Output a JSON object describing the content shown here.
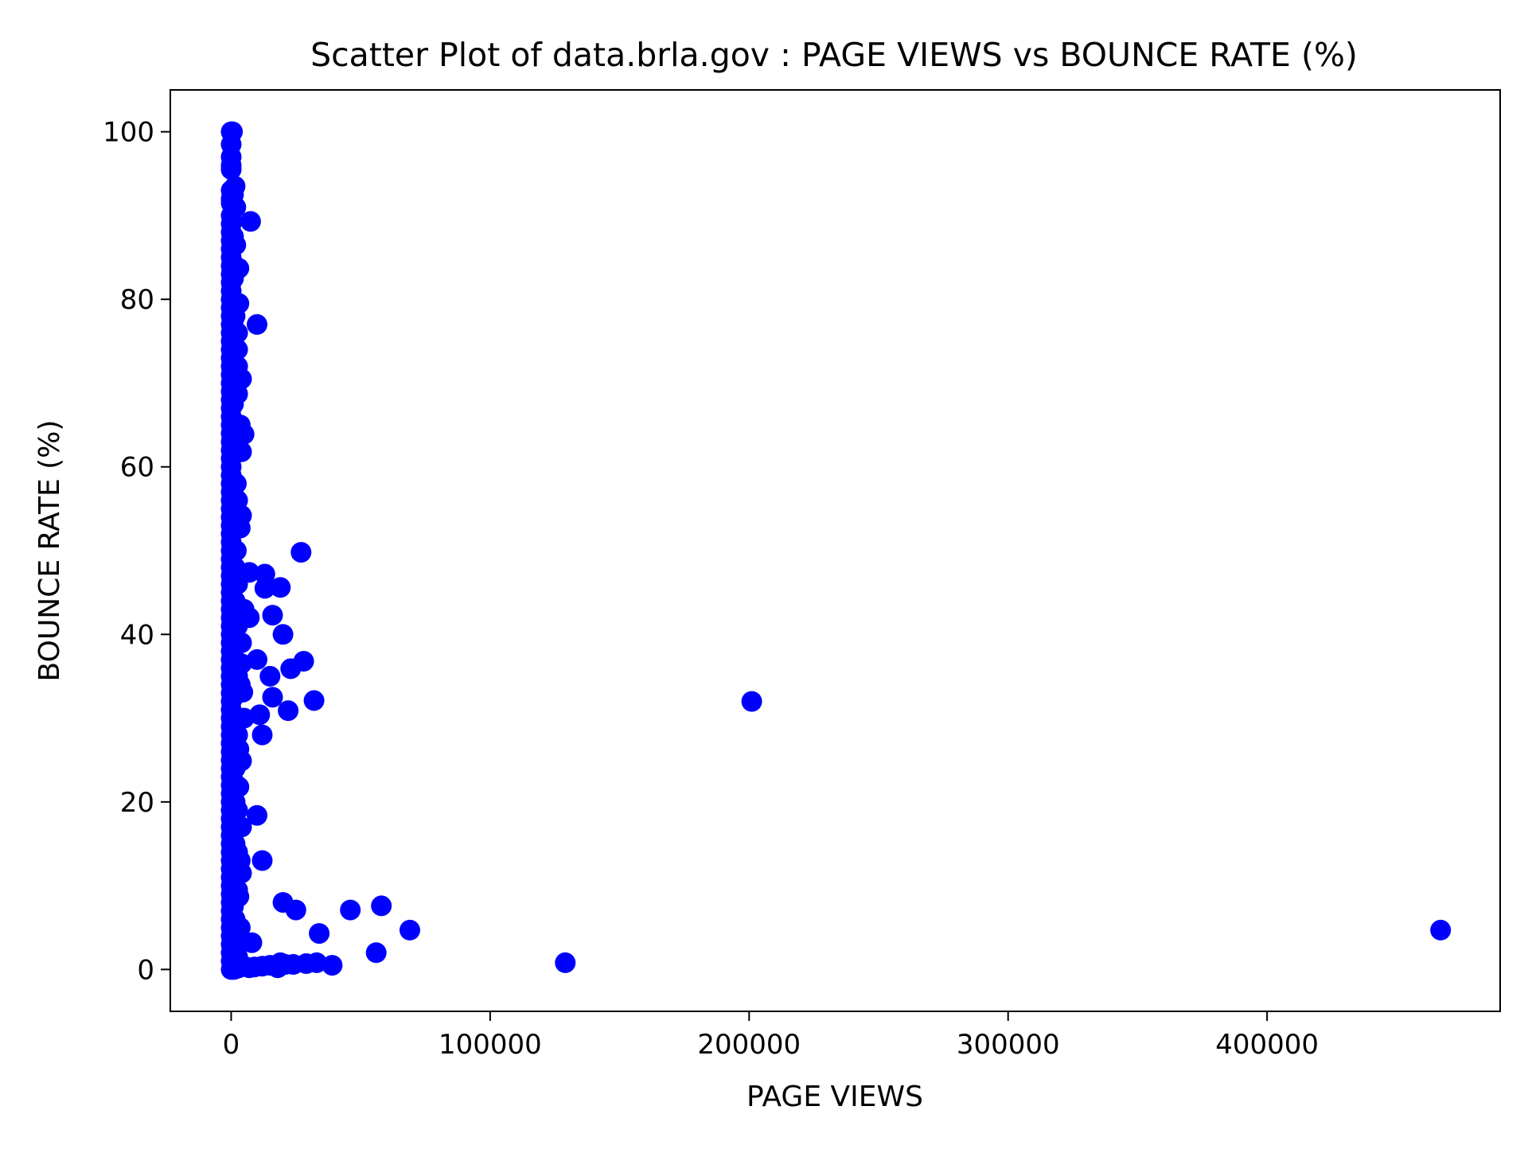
{
  "chart_data": {
    "type": "scatter",
    "title": "Scatter Plot of data.brla.gov : PAGE VIEWS vs BOUNCE RATE (%)",
    "xlabel": "PAGE VIEWS",
    "ylabel": "BOUNCE RATE (%)",
    "xlim": [
      -23500,
      490000
    ],
    "ylim": [
      -5,
      105
    ],
    "xticks": [
      0,
      100000,
      200000,
      300000,
      400000
    ],
    "xtick_labels": [
      "0",
      "100000",
      "200000",
      "300000",
      "400000"
    ],
    "yticks": [
      0,
      20,
      40,
      60,
      80,
      100
    ],
    "ytick_labels": [
      "0",
      "20",
      "40",
      "60",
      "80",
      "100"
    ],
    "grid": false,
    "marker_color": "#0000ff",
    "series": [
      {
        "points": [
          [
            467000,
            4.7
          ],
          [
            201000,
            32.0
          ],
          [
            129000,
            0.8
          ],
          [
            69000,
            4.7
          ],
          [
            58000,
            7.6
          ],
          [
            56000,
            2.0
          ],
          [
            46000,
            7.1
          ],
          [
            39000,
            0.5
          ],
          [
            34000,
            4.3
          ],
          [
            33000,
            0.8
          ],
          [
            29000,
            0.7
          ],
          [
            32000,
            32.1
          ],
          [
            28000,
            36.8
          ],
          [
            27000,
            49.8
          ],
          [
            23000,
            35.9
          ],
          [
            22000,
            30.9
          ],
          [
            20000,
            40.0
          ],
          [
            19000,
            45.6
          ],
          [
            16000,
            42.3
          ],
          [
            16000,
            32.5
          ],
          [
            15000,
            35.0
          ],
          [
            13000,
            47.2
          ],
          [
            13000,
            45.5
          ],
          [
            12000,
            28.0
          ],
          [
            12000,
            13.0
          ],
          [
            11000,
            30.4
          ],
          [
            10000,
            77.0
          ],
          [
            10000,
            37.0
          ],
          [
            10000,
            18.4
          ],
          [
            7500,
            89.3
          ],
          [
            7000,
            47.4
          ],
          [
            7000,
            42.0
          ],
          [
            8000,
            3.2
          ],
          [
            25000,
            7.1
          ],
          [
            20000,
            8.0
          ],
          [
            24000,
            0.6
          ],
          [
            21000,
            0.6
          ],
          [
            19000,
            0.8
          ],
          [
            18000,
            0.2
          ],
          [
            15000,
            0.5
          ],
          [
            12000,
            0.4
          ],
          [
            9000,
            0.3
          ],
          [
            7000,
            0.2
          ],
          [
            5000,
            0.4
          ],
          [
            3000,
            0.2
          ],
          [
            2000,
            0.1
          ],
          [
            1000,
            0.0
          ],
          [
            500,
            0.1
          ],
          [
            5000,
            63.9
          ],
          [
            4000,
            61.8
          ],
          [
            4000,
            54.2
          ],
          [
            3500,
            52.7
          ],
          [
            5000,
            43.0
          ],
          [
            4000,
            39.0
          ],
          [
            4000,
            36.5
          ],
          [
            3500,
            34.0
          ],
          [
            4500,
            33.1
          ],
          [
            5000,
            30.0
          ],
          [
            3000,
            26.3
          ],
          [
            4000,
            24.9
          ],
          [
            3000,
            21.8
          ],
          [
            4000,
            17.0
          ],
          [
            3500,
            13.0
          ],
          [
            4000,
            11.5
          ],
          [
            3000,
            8.7
          ],
          [
            3500,
            5.0
          ],
          [
            3000,
            83.7
          ],
          [
            3000,
            79.5
          ],
          [
            2500,
            76.0
          ],
          [
            2500,
            74.0
          ],
          [
            2500,
            72.0
          ],
          [
            4000,
            70.5
          ],
          [
            2500,
            68.7
          ],
          [
            3500,
            65.0
          ],
          [
            2000,
            58.0
          ],
          [
            2500,
            56.0
          ],
          [
            2000,
            50.0
          ],
          [
            1800,
            86.5
          ],
          [
            1800,
            91.0
          ],
          [
            1500,
            93.5
          ],
          [
            0,
            100.0
          ],
          [
            500,
            100.0
          ],
          [
            0,
            98.5
          ],
          [
            0,
            97.0
          ],
          [
            0,
            96.0
          ],
          [
            0,
            95.5
          ],
          [
            0,
            93.0
          ],
          [
            0,
            92.0
          ],
          [
            0,
            91.5
          ],
          [
            0,
            90.0
          ],
          [
            0,
            89.0
          ],
          [
            0,
            88.0
          ],
          [
            0,
            87.0
          ],
          [
            0,
            86.0
          ],
          [
            0,
            85.0
          ],
          [
            0,
            84.0
          ],
          [
            0,
            83.0
          ],
          [
            0,
            82.0
          ],
          [
            0,
            81.0
          ],
          [
            0,
            80.0
          ],
          [
            0,
            79.0
          ],
          [
            0,
            78.0
          ],
          [
            0,
            77.0
          ],
          [
            0,
            76.0
          ],
          [
            0,
            75.0
          ],
          [
            0,
            74.0
          ],
          [
            0,
            73.0
          ],
          [
            0,
            72.0
          ],
          [
            0,
            71.0
          ],
          [
            0,
            70.0
          ],
          [
            0,
            69.0
          ],
          [
            0,
            68.0
          ],
          [
            0,
            67.0
          ],
          [
            0,
            66.0
          ],
          [
            0,
            65.0
          ],
          [
            0,
            64.0
          ],
          [
            0,
            63.0
          ],
          [
            0,
            62.0
          ],
          [
            0,
            61.0
          ],
          [
            0,
            60.0
          ],
          [
            0,
            59.0
          ],
          [
            0,
            58.0
          ],
          [
            0,
            57.0
          ],
          [
            0,
            56.0
          ],
          [
            0,
            55.0
          ],
          [
            0,
            54.0
          ],
          [
            0,
            53.0
          ],
          [
            0,
            52.0
          ],
          [
            0,
            51.0
          ],
          [
            0,
            50.0
          ],
          [
            0,
            49.0
          ],
          [
            0,
            48.0
          ],
          [
            0,
            47.0
          ],
          [
            0,
            46.0
          ],
          [
            0,
            45.0
          ],
          [
            0,
            44.0
          ],
          [
            0,
            43.0
          ],
          [
            0,
            42.0
          ],
          [
            0,
            41.0
          ],
          [
            0,
            40.0
          ],
          [
            0,
            39.0
          ],
          [
            0,
            38.0
          ],
          [
            0,
            37.0
          ],
          [
            0,
            36.0
          ],
          [
            0,
            35.0
          ],
          [
            0,
            34.0
          ],
          [
            0,
            33.0
          ],
          [
            0,
            32.0
          ],
          [
            0,
            31.0
          ],
          [
            0,
            30.0
          ],
          [
            0,
            29.0
          ],
          [
            0,
            28.0
          ],
          [
            0,
            27.0
          ],
          [
            0,
            26.0
          ],
          [
            0,
            25.0
          ],
          [
            0,
            24.0
          ],
          [
            0,
            23.0
          ],
          [
            0,
            22.0
          ],
          [
            0,
            21.0
          ],
          [
            0,
            20.0
          ],
          [
            0,
            19.0
          ],
          [
            0,
            18.0
          ],
          [
            0,
            17.0
          ],
          [
            0,
            16.0
          ],
          [
            0,
            15.0
          ],
          [
            0,
            14.0
          ],
          [
            0,
            13.0
          ],
          [
            0,
            12.0
          ],
          [
            0,
            11.0
          ],
          [
            0,
            10.0
          ],
          [
            0,
            9.0
          ],
          [
            0,
            8.0
          ],
          [
            0,
            7.0
          ],
          [
            0,
            6.0
          ],
          [
            0,
            5.0
          ],
          [
            0,
            4.0
          ],
          [
            0,
            3.0
          ],
          [
            0,
            2.0
          ],
          [
            0,
            1.0
          ],
          [
            0,
            0.0
          ],
          [
            900,
            92.5
          ],
          [
            900,
            87.5
          ],
          [
            900,
            82.5
          ],
          [
            900,
            77.5
          ],
          [
            900,
            72.5
          ],
          [
            900,
            67.5
          ],
          [
            900,
            62.5
          ],
          [
            900,
            57.5
          ],
          [
            900,
            52.5
          ],
          [
            900,
            47.5
          ],
          [
            900,
            42.5
          ],
          [
            900,
            37.5
          ],
          [
            900,
            32.5
          ],
          [
            900,
            27.5
          ],
          [
            900,
            22.5
          ],
          [
            900,
            17.5
          ],
          [
            900,
            12.5
          ],
          [
            900,
            7.5
          ],
          [
            900,
            2.5
          ],
          [
            1500,
            84.0
          ],
          [
            1500,
            78.0
          ],
          [
            1500,
            70.0
          ],
          [
            1500,
            64.0
          ],
          [
            1500,
            58.0
          ],
          [
            1500,
            48.0
          ],
          [
            1500,
            44.0
          ],
          [
            1500,
            40.0
          ],
          [
            1500,
            30.0
          ],
          [
            1500,
            24.0
          ],
          [
            1500,
            20.0
          ],
          [
            1500,
            15.0
          ],
          [
            1500,
            10.0
          ],
          [
            1500,
            6.0
          ],
          [
            1500,
            2.0
          ],
          [
            2500,
            46.0
          ],
          [
            2500,
            41.0
          ],
          [
            2500,
            35.0
          ],
          [
            2500,
            28.0
          ],
          [
            2500,
            19.0
          ],
          [
            2500,
            14.0
          ],
          [
            2500,
            9.5
          ],
          [
            2500,
            4.0
          ],
          [
            2500,
            1.5
          ]
        ]
      }
    ]
  }
}
